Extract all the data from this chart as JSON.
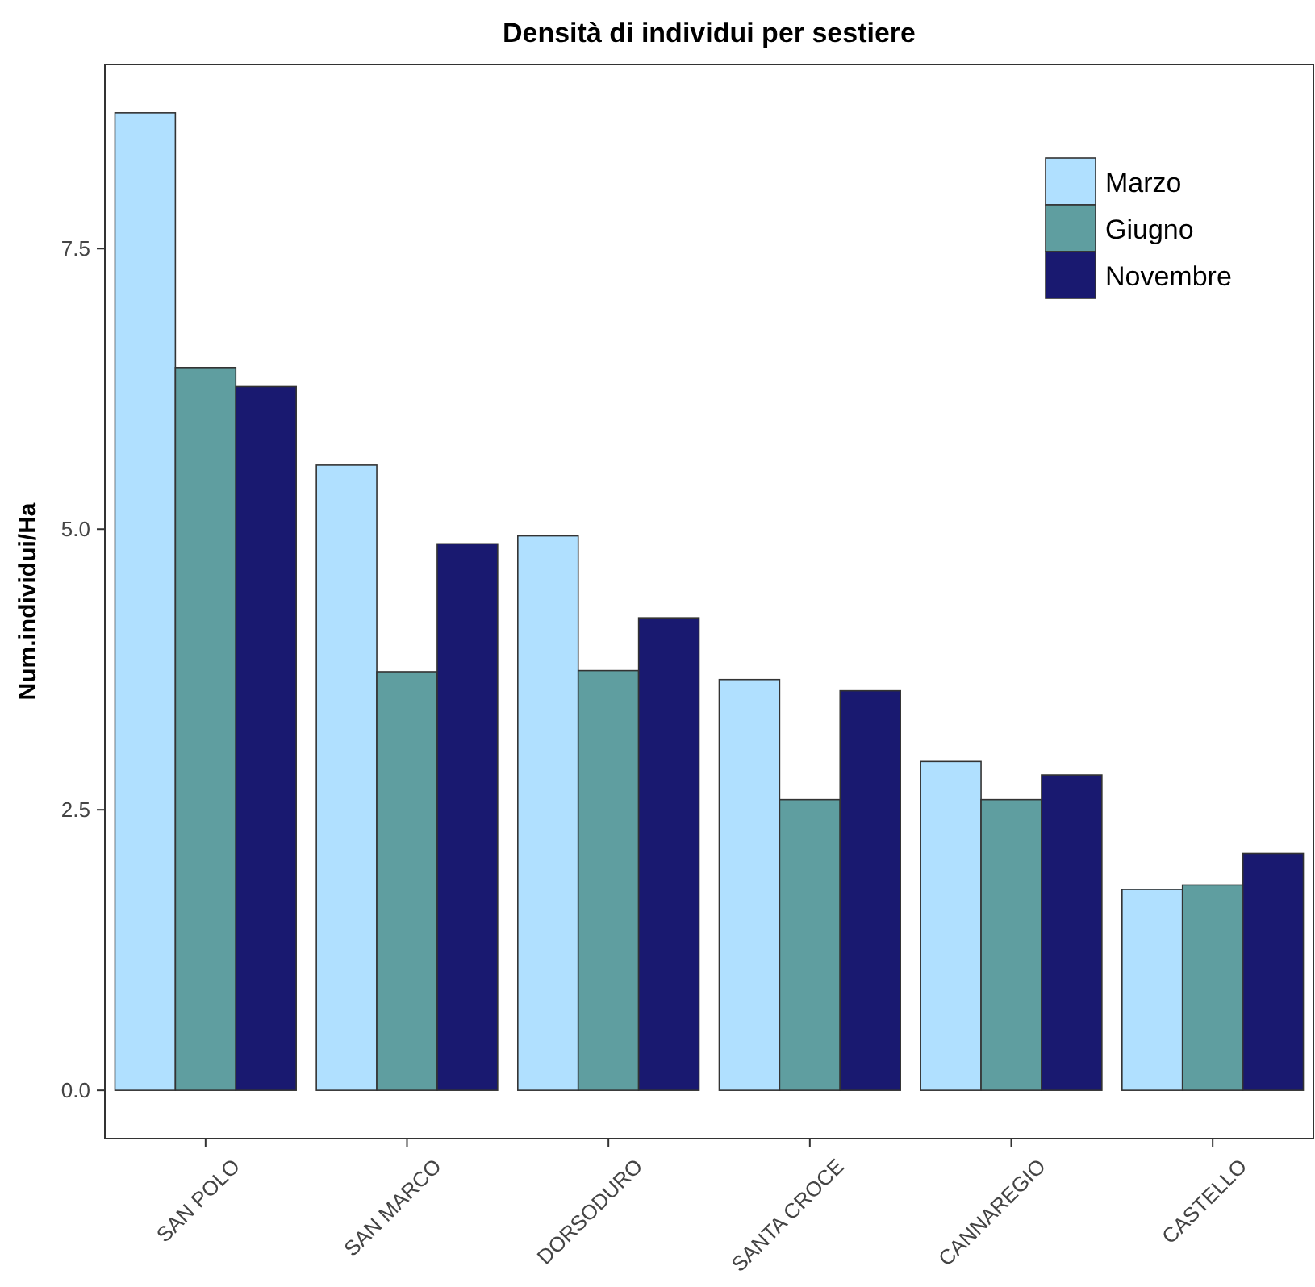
{
  "chart_data": {
    "type": "bar",
    "title": "Densità di individui per sestiere",
    "ylabel": "Num.individui/Ha",
    "categories": [
      "SAN POLO",
      "SAN MARCO",
      "DORSODURO",
      "SANTA CROCE",
      "CANNAREGIO",
      "CASTELLO"
    ],
    "series": [
      {
        "name": "Marzo",
        "color": "#b0e0ff",
        "values": [
          8.71,
          5.57,
          4.94,
          3.66,
          2.93,
          1.79
        ]
      },
      {
        "name": "Giugno",
        "color": "#5f9ea0",
        "values": [
          6.44,
          3.73,
          3.74,
          2.59,
          2.59,
          1.83
        ]
      },
      {
        "name": "Novembre",
        "color": "#191970",
        "values": [
          6.27,
          4.87,
          4.21,
          3.56,
          2.81,
          2.11
        ]
      }
    ],
    "ylim": [
      -0.43,
      9.14
    ],
    "yticks": [
      {
        "value": 0,
        "label": "0.0"
      },
      2.5,
      {
        "value": 5,
        "label": "5.0"
      },
      7.5
    ],
    "grid": false,
    "legend": "top right"
  }
}
